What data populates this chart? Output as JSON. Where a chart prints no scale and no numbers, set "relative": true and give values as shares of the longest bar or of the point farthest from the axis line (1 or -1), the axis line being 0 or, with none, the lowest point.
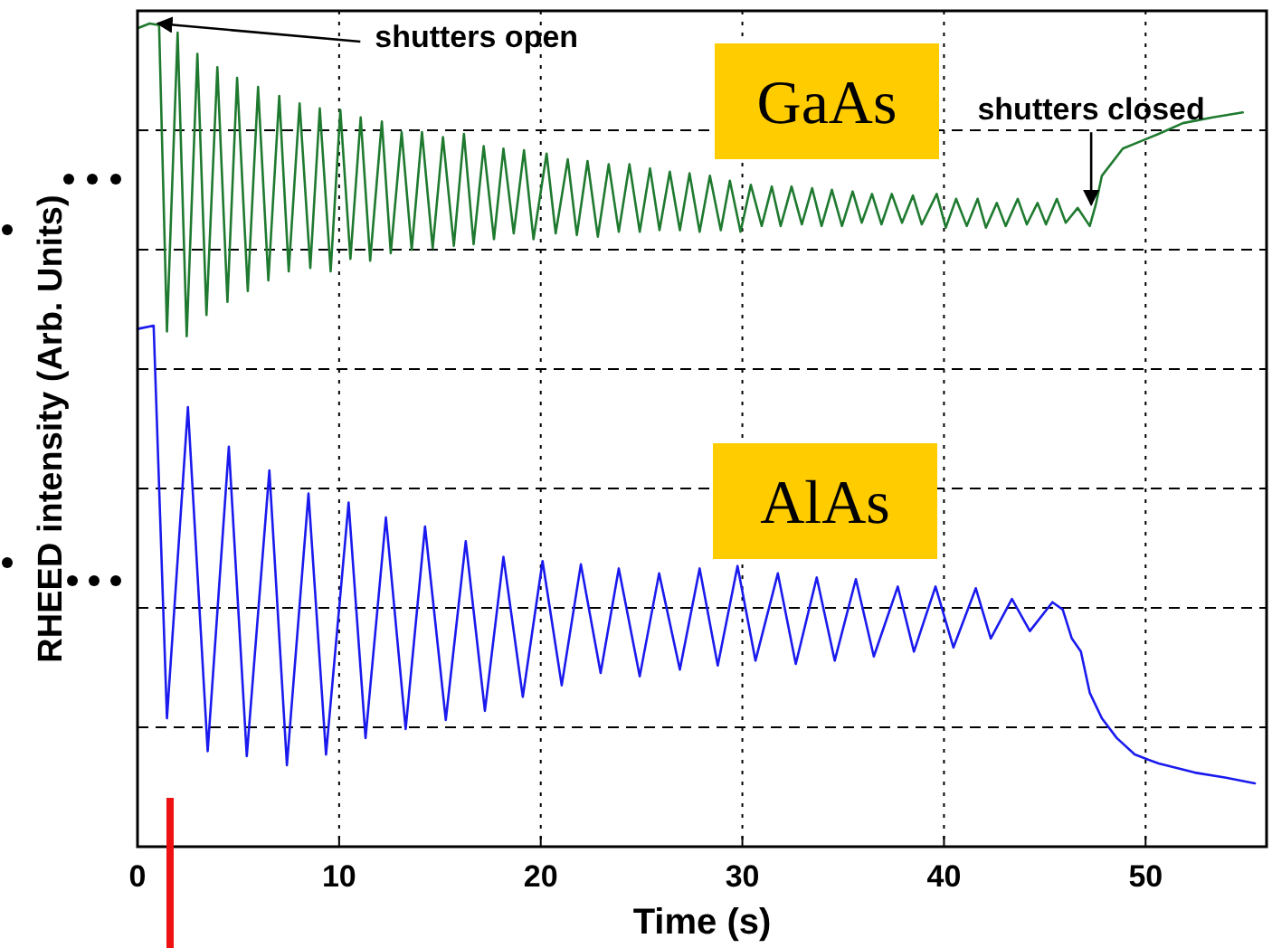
{
  "chart_data": {
    "type": "line",
    "relative": true,
    "xlabel": "Time (s)",
    "ylabel": "RHEED intensity (Arb. Units)",
    "xlim": [
      0,
      56
    ],
    "xticks": [
      0,
      10,
      20,
      30,
      40,
      50
    ],
    "grid": true,
    "tick_labels": "x",
    "line_style": "solid",
    "annotations": [
      {
        "text": "shutters open",
        "x": 1.0,
        "y": 1.0
      },
      {
        "text": "shutters closed",
        "x": 47.3,
        "y": 0.78
      }
    ],
    "series": [
      {
        "name": "GaAs",
        "color": "#1f7a30",
        "x": [
          0.09,
          0.6,
          1.07,
          1.46,
          1.99,
          2.44,
          2.97,
          3.42,
          3.96,
          4.46,
          4.94,
          5.47,
          5.98,
          6.49,
          7.03,
          7.5,
          8.04,
          8.57,
          9.04,
          9.58,
          10.06,
          10.56,
          11.07,
          11.54,
          12.12,
          12.56,
          13.1,
          13.6,
          14.11,
          14.64,
          15.15,
          15.69,
          16.19,
          16.67,
          17.17,
          17.68,
          18.15,
          18.66,
          19.17,
          19.64,
          20.29,
          20.74,
          21.34,
          21.79,
          22.32,
          22.83,
          23.37,
          23.87,
          24.4,
          24.91,
          25.42,
          25.89,
          26.4,
          26.9,
          27.38,
          27.88,
          28.39,
          28.93,
          29.38,
          29.91,
          30.42,
          30.96,
          31.46,
          31.9,
          32.44,
          32.95,
          33.46,
          33.93,
          34.44,
          34.94,
          35.47,
          35.92,
          36.43,
          36.9,
          37.41,
          37.92,
          38.46,
          38.9,
          39.64,
          40.09,
          40.6,
          41.13,
          41.67,
          42.08,
          42.62,
          43.06,
          43.66,
          44.11,
          44.64,
          45.06,
          45.6,
          46.04,
          46.63,
          47.23,
          47.53,
          47.83,
          48.87,
          49.76,
          50.65,
          51.85,
          53.33,
          54.82
        ],
        "values": [
          0.995,
          1.0,
          0.998,
          0.626,
          0.989,
          0.62,
          0.963,
          0.646,
          0.947,
          0.662,
          0.934,
          0.675,
          0.923,
          0.688,
          0.912,
          0.699,
          0.903,
          0.703,
          0.897,
          0.699,
          0.895,
          0.714,
          0.886,
          0.712,
          0.881,
          0.721,
          0.868,
          0.725,
          0.868,
          0.727,
          0.862,
          0.73,
          0.866,
          0.732,
          0.851,
          0.738,
          0.848,
          0.745,
          0.846,
          0.738,
          0.842,
          0.745,
          0.835,
          0.743,
          0.833,
          0.741,
          0.829,
          0.747,
          0.829,
          0.747,
          0.824,
          0.749,
          0.82,
          0.749,
          0.818,
          0.747,
          0.815,
          0.749,
          0.809,
          0.747,
          0.804,
          0.754,
          0.802,
          0.754,
          0.802,
          0.756,
          0.8,
          0.754,
          0.798,
          0.754,
          0.796,
          0.758,
          0.793,
          0.756,
          0.793,
          0.758,
          0.791,
          0.756,
          0.793,
          0.752,
          0.787,
          0.754,
          0.787,
          0.752,
          0.782,
          0.754,
          0.787,
          0.756,
          0.782,
          0.756,
          0.787,
          0.758,
          0.776,
          0.754,
          0.78,
          0.815,
          0.848,
          0.857,
          0.866,
          0.879,
          0.886,
          0.892
        ]
      },
      {
        "name": "AlAs",
        "color": "#1a1aee",
        "x": [
          0,
          0.8,
          1.46,
          2.5,
          3.48,
          4.53,
          5.42,
          6.54,
          7.41,
          8.48,
          9.35,
          10.47,
          11.31,
          12.32,
          13.3,
          14.26,
          15.29,
          16.28,
          17.23,
          18.15,
          19.11,
          20.09,
          21.04,
          21.99,
          22.97,
          23.87,
          24.91,
          25.87,
          26.9,
          27.88,
          28.78,
          29.76,
          30.65,
          31.76,
          32.65,
          33.69,
          34.58,
          35.63,
          36.52,
          37.71,
          38.51,
          39.58,
          40.47,
          41.58,
          42.32,
          43.37,
          44.26,
          45.38,
          45.89,
          46.34,
          46.79,
          47.23,
          47.83,
          48.57,
          49.46,
          50.65,
          52.44,
          53.93,
          55.42
        ],
        "values": [
          0.629,
          0.633,
          0.156,
          0.534,
          0.116,
          0.486,
          0.11,
          0.457,
          0.099,
          0.429,
          0.112,
          0.418,
          0.132,
          0.4,
          0.143,
          0.389,
          0.154,
          0.371,
          0.165,
          0.352,
          0.182,
          0.347,
          0.196,
          0.343,
          0.211,
          0.338,
          0.207,
          0.332,
          0.215,
          0.338,
          0.22,
          0.341,
          0.226,
          0.332,
          0.222,
          0.327,
          0.226,
          0.325,
          0.231,
          0.316,
          0.237,
          0.316,
          0.242,
          0.314,
          0.253,
          0.301,
          0.262,
          0.297,
          0.288,
          0.253,
          0.237,
          0.187,
          0.156,
          0.132,
          0.112,
          0.101,
          0.09,
          0.084,
          0.077
        ]
      }
    ]
  }
}
